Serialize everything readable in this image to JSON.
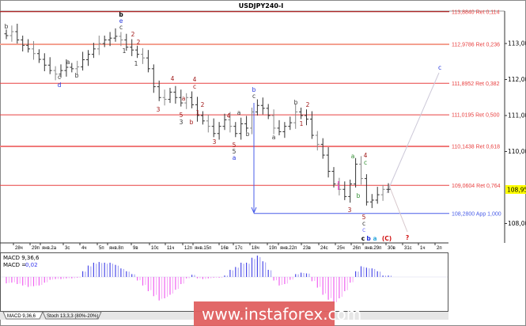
{
  "chart_data": {
    "type": "ohlc",
    "title": "USDJPY240-I",
    "current_price": "108,951",
    "price_axis_ticks": [
      "113,000",
      "112,000",
      "111,000",
      "110,000",
      "108,000"
    ],
    "price_axis_values": [
      113,
      112,
      111,
      110,
      108
    ],
    "ylim": [
      107.6,
      113.9
    ],
    "date_ticks": [
      "28ч",
      "29п",
      "янв.2а",
      "3с",
      "4ч",
      "5п",
      "янв.8п",
      "9в",
      "10с",
      "11ч",
      "12п",
      "янв.15п",
      "16в",
      "17с",
      "18ч",
      "19п",
      "янв.22п",
      "23в",
      "24с",
      "25ч",
      "26п",
      "янв.29п",
      "30в",
      "31с",
      "1ч",
      "2п"
    ],
    "closes": [
      113.22,
      113.33,
      113.1,
      112.95,
      112.85,
      112.72,
      112.56,
      112.4,
      112.25,
      112.15,
      112.25,
      112.34,
      112.3,
      112.35,
      112.55,
      112.7,
      112.85,
      113.0,
      113.1,
      113.15,
      113.2,
      113.1,
      112.9,
      112.82,
      112.7,
      112.6,
      112.3,
      111.8,
      111.5,
      111.45,
      111.65,
      111.5,
      111.35,
      111.5,
      111.3,
      111.0,
      110.85,
      110.7,
      110.5,
      110.7,
      110.88,
      110.7,
      110.5,
      110.77,
      110.65,
      111.1,
      111.28,
      111.2,
      111.0,
      110.65,
      110.55,
      110.7,
      110.8,
      111.1,
      111.0,
      110.9,
      110.45,
      110.2,
      109.9,
      109.45,
      109.1,
      108.95,
      108.75,
      109.1,
      109.65,
      109.25,
      108.6,
      108.65,
      108.8,
      108.95,
      108.95
    ],
    "fib_levels": [
      {
        "price": 113.884,
        "label": "113,8840 Ret 0,114",
        "color": "#b00000"
      },
      {
        "price": 112.9786,
        "label": "112,9786 Ret 0,236",
        "color": "#f4a090"
      },
      {
        "price": 111.8952,
        "label": "111,8952 Ret 0,382",
        "color": "#e84040"
      },
      {
        "price": 111.0195,
        "label": "111,0195 Ret 0,500",
        "color": "#e84040"
      },
      {
        "price": 110.1438,
        "label": "110,1438 Ret 0,618",
        "color": "#f07a7a"
      },
      {
        "price": 109.0604,
        "label": "109,0604 Ret 0,764",
        "color": "#e84040"
      },
      {
        "price": 108.28,
        "label": "108,2800 App 1,000",
        "color": "#4a5ee8"
      }
    ],
    "wave_labels": [
      {
        "text": "b",
        "color": "#333"
      },
      {
        "text": "b",
        "color": "#000"
      },
      {
        "text": "e",
        "color": "#2233dd"
      },
      {
        "text": "c",
        "color": "#333"
      },
      {
        "text": "2",
        "color": "#a01818"
      },
      {
        "text": "1",
        "color": "#333"
      },
      {
        "text": "2",
        "color": "#a01818"
      },
      {
        "text": "1",
        "color": "#333"
      },
      {
        "text": "c",
        "color": "#333"
      },
      {
        "text": "d",
        "color": "#2233dd"
      },
      {
        "text": "a",
        "color": "#333"
      },
      {
        "text": "b",
        "color": "#333"
      },
      {
        "text": "4",
        "color": "#a01818"
      },
      {
        "text": "4",
        "color": "#a01818"
      },
      {
        "text": "c",
        "color": "#a01818"
      },
      {
        "text": "3",
        "color": "#a01818"
      },
      {
        "text": "a",
        "color": "#a01818"
      },
      {
        "text": "5",
        "color": "#a01818"
      },
      {
        "text": "3",
        "color": "#333"
      },
      {
        "text": "b",
        "color": "#a01818"
      },
      {
        "text": "1",
        "color": "#a01818"
      },
      {
        "text": "2",
        "color": "#a01818"
      },
      {
        "text": "3",
        "color": "#a01818"
      },
      {
        "text": "4",
        "color": "#a01818"
      },
      {
        "text": "a",
        "color": "#333"
      },
      {
        "text": "b",
        "color": "#333"
      },
      {
        "text": "5",
        "color": "#a01818"
      },
      {
        "text": "5",
        "color": "#333"
      },
      {
        "text": "a",
        "color": "#2233dd"
      },
      {
        "text": "b",
        "color": "#2233dd"
      },
      {
        "text": "c",
        "color": "#333"
      },
      {
        "text": "a",
        "color": "#333"
      },
      {
        "text": "b",
        "color": "#333"
      },
      {
        "text": "2",
        "color": "#a01818"
      },
      {
        "text": "1",
        "color": "#a01818"
      },
      {
        "text": "a",
        "color": "#2e8b2e"
      },
      {
        "text": "4",
        "color": "#a01818"
      },
      {
        "text": "c",
        "color": "#2e8b2e"
      },
      {
        "text": "b",
        "color": "#2e8b2e"
      },
      {
        "text": "3",
        "color": "#a01818"
      },
      {
        "text": "5",
        "color": "#a01818"
      },
      {
        "text": "c",
        "color": "#333"
      },
      {
        "text": "c",
        "color": "#6a6aff"
      },
      {
        "text": "c",
        "color": "#000"
      },
      {
        "text": "b",
        "color": "#2233dd"
      },
      {
        "text": "a",
        "color": "#33aadd"
      },
      {
        "text": "(C)",
        "color": "#d01010"
      },
      {
        "text": "?",
        "color": "#d01010"
      },
      {
        "text": "c",
        "color": "#2233dd"
      }
    ],
    "macd": {
      "label": "MACD 9,36,6",
      "value_label": "MACD =",
      "value": "0,02",
      "positive_color": "#4a4ae8",
      "negative_color": "#f060f0",
      "values": [
        -0.09,
        -0.08,
        -0.1,
        -0.12,
        -0.14,
        -0.13,
        -0.12,
        -0.08,
        -0.04,
        -0.03,
        -0.03,
        -0.02,
        -0.02,
        -0.01,
        0.08,
        0.16,
        0.2,
        0.21,
        0.2,
        0.2,
        0.17,
        0.12,
        0.08,
        0.04,
        -0.05,
        -0.12,
        -0.2,
        -0.27,
        -0.33,
        -0.3,
        -0.25,
        -0.18,
        -0.1,
        -0.02,
        0.03,
        -0.02,
        -0.03,
        -0.02,
        -0.01,
        -0.01,
        0.02,
        0.1,
        0.14,
        0.2,
        0.2,
        0.27,
        0.3,
        0.22,
        0.1,
        -0.05,
        -0.12,
        -0.1,
        -0.04,
        0.04,
        0.06,
        0.05,
        -0.06,
        -0.15,
        -0.25,
        -0.32,
        -0.38,
        -0.3,
        -0.2,
        -0.08,
        0.08,
        0.15,
        0.13,
        0.12,
        0.08,
        0.02,
        0.02
      ]
    }
  },
  "tabs": [
    "MACD 9,36,6",
    "Stoch 13,3,3 (80%-20%)"
  ],
  "watermark": "www.instaforex.com"
}
